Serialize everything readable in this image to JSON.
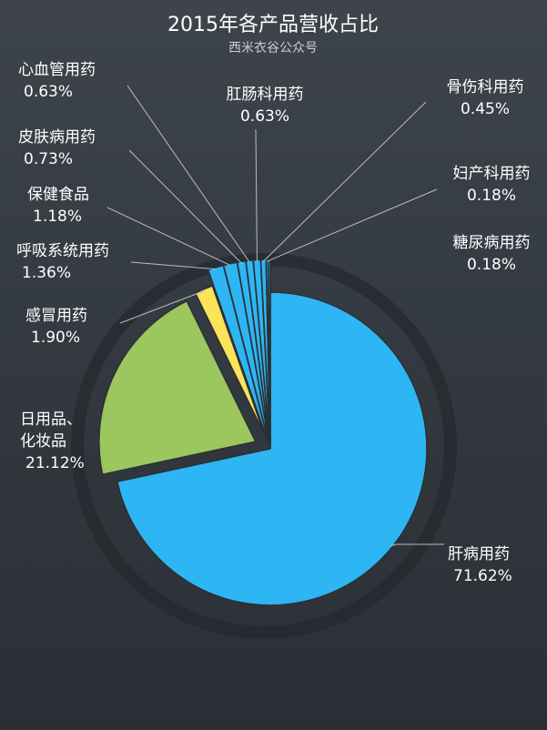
{
  "chart_data": {
    "type": "pie",
    "title": "2015年各产品营收占比",
    "subtitle": "西米衣谷公众号",
    "slices": [
      {
        "label": "肝病用药",
        "value": 71.62,
        "display": "71.62%",
        "color": "#2db6f3"
      },
      {
        "label": "日用品、化妆品",
        "label_lines": [
          "日用品、",
          "化妆品"
        ],
        "value": 21.12,
        "display": "21.12%",
        "color": "#9cc65e"
      },
      {
        "label": "感冒用药",
        "value": 1.9,
        "display": "1.90%",
        "color": "#fde35a"
      },
      {
        "label": "呼吸系统用药",
        "value": 1.36,
        "display": "1.36%",
        "color": "#2db6f3"
      },
      {
        "label": "保健食品",
        "value": 1.18,
        "display": "1.18%",
        "color": "#2db6f3"
      },
      {
        "label": "皮肤病用药",
        "value": 0.73,
        "display": "0.73%",
        "color": "#2db6f3"
      },
      {
        "label": "心血管用药",
        "value": 0.63,
        "display": "0.63%",
        "color": "#2db6f3"
      },
      {
        "label": "肛肠科用药",
        "value": 0.63,
        "display": "0.63%",
        "color": "#2db6f3"
      },
      {
        "label": "骨伤科用药",
        "value": 0.45,
        "display": "0.45%",
        "color": "#2db6f3"
      },
      {
        "label": "妇产科用药",
        "value": 0.18,
        "display": "0.18%",
        "color": "#2db6f3"
      },
      {
        "label": "糖尿病用药",
        "value": 0.18,
        "display": "0.18%",
        "color": "#2db6f3"
      }
    ]
  }
}
